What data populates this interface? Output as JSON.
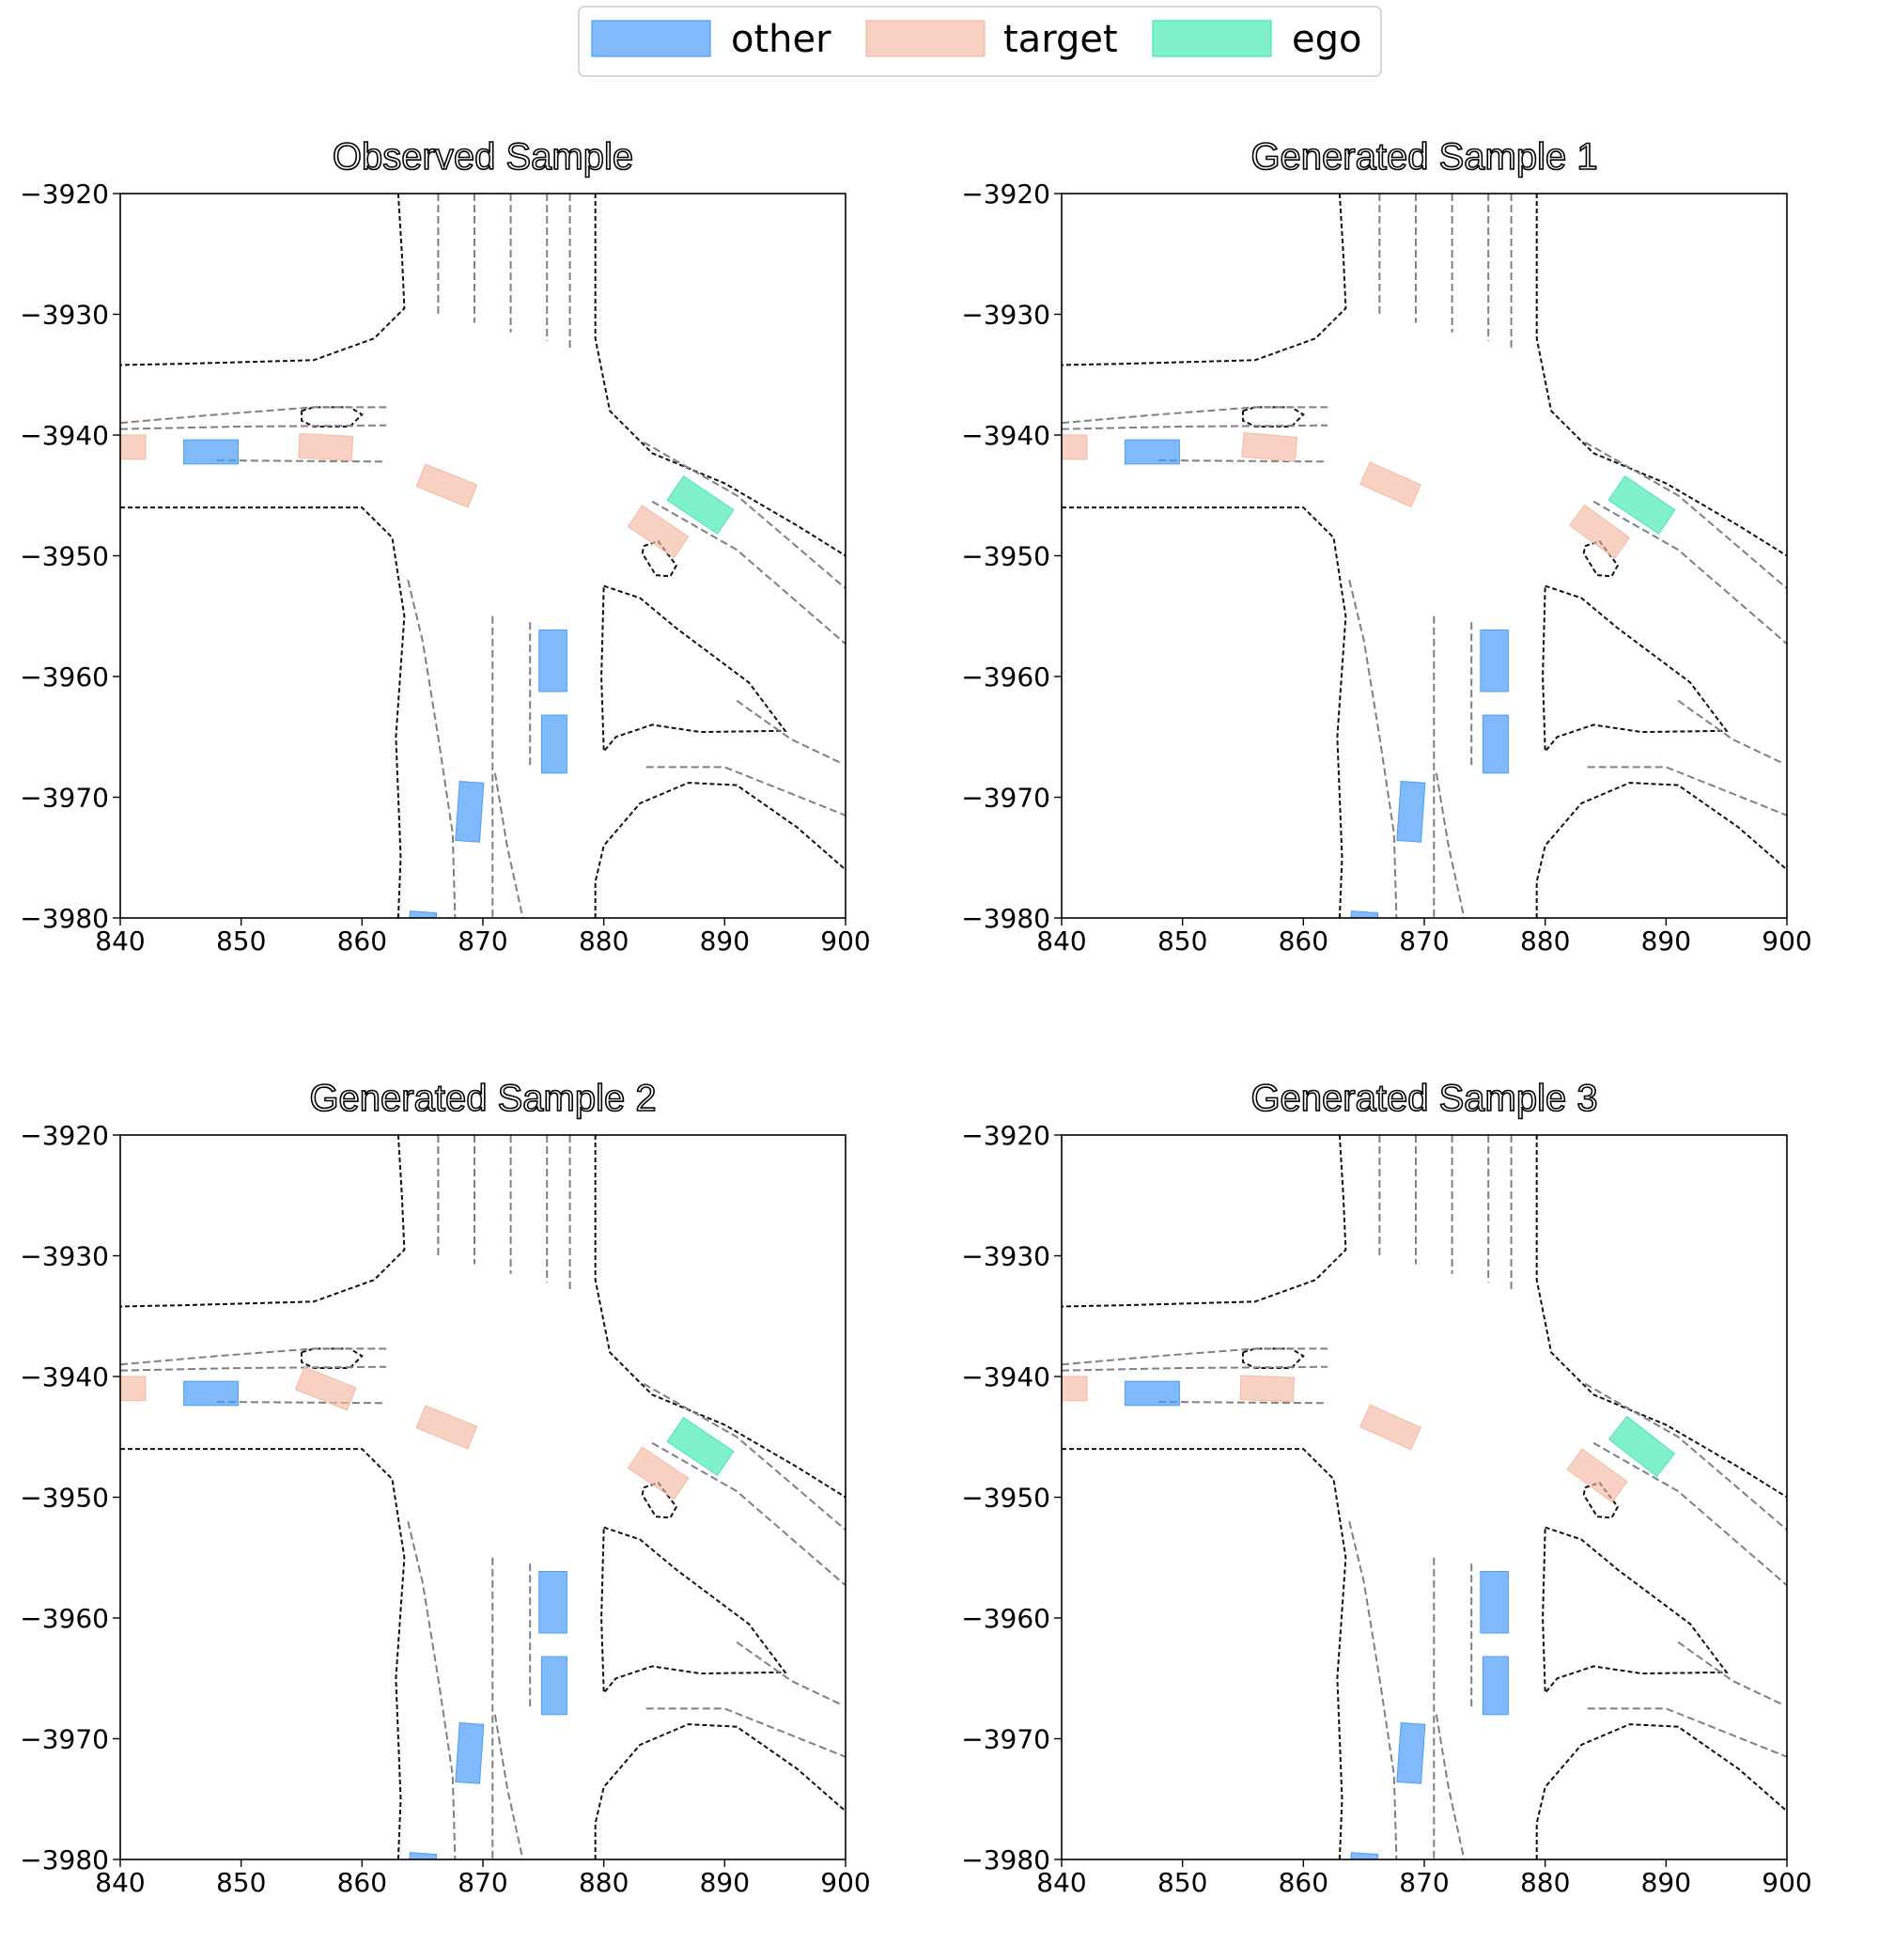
{
  "legend": {
    "placement": "top-center",
    "entries": [
      {
        "label": "other",
        "color": "#4a9df8",
        "alpha": 0.7
      },
      {
        "label": "target",
        "color": "#f4b9a3",
        "alpha": 0.65
      },
      {
        "label": "ego",
        "color": "#3ee8b0",
        "alpha": 0.65
      }
    ]
  },
  "chart_data": [
    {
      "type": "scatter",
      "title": "Observed Sample",
      "xlim": [
        840,
        900
      ],
      "ylim": [
        -3980,
        -3920
      ],
      "xticks": [
        "840",
        "850",
        "860",
        "870",
        "880",
        "890",
        "900"
      ],
      "yticks": [
        "−3920",
        "−3930",
        "−3940",
        "−3950",
        "−3960",
        "−3970",
        "−3980"
      ],
      "grid": false,
      "series": [
        {
          "name": "other",
          "boxes": [
            {
              "x": 847.5,
              "y": -3941.4,
              "w": 4.5,
              "h": 2.0,
              "angle": 0
            },
            {
              "x": 875.8,
              "y": -3958.7,
              "w": 2.3,
              "h": 5.1,
              "angle": 0
            },
            {
              "x": 875.9,
              "y": -3965.6,
              "w": 2.1,
              "h": 4.8,
              "angle": 0
            },
            {
              "x": 868.9,
              "y": -3971.2,
              "w": 2.0,
              "h": 4.9,
              "angle": 4
            },
            {
              "x": 865.0,
              "y": -3980.5,
              "w": 2.2,
              "h": 2.0,
              "angle": 4
            }
          ]
        },
        {
          "name": "target",
          "boxes": [
            {
              "x": 841.0,
              "y": -3941.0,
              "w": 2.2,
              "h": 2.0,
              "angle": 0
            },
            {
              "x": 857.0,
              "y": -3941.0,
              "w": 4.4,
              "h": 2.0,
              "angle": 3
            },
            {
              "x": 867.0,
              "y": -3944.2,
              "w": 4.6,
              "h": 2.0,
              "angle": 22
            },
            {
              "x": 884.5,
              "y": -3948.0,
              "w": 4.6,
              "h": 2.1,
              "angle": 34
            }
          ]
        },
        {
          "name": "ego",
          "boxes": [
            {
              "x": 888.0,
              "y": -3945.8,
              "w": 5.0,
              "h": 2.4,
              "angle": 34
            }
          ]
        }
      ]
    },
    {
      "type": "scatter",
      "title": "Generated Sample 1",
      "xlim": [
        840,
        900
      ],
      "ylim": [
        -3980,
        -3920
      ],
      "xticks": [
        "840",
        "850",
        "860",
        "870",
        "880",
        "890",
        "900"
      ],
      "yticks": [
        "−3920",
        "−3930",
        "−3940",
        "−3950",
        "−3960",
        "−3970",
        "−3980"
      ],
      "grid": false,
      "series": [
        {
          "name": "other",
          "boxes": [
            {
              "x": 847.5,
              "y": -3941.4,
              "w": 4.5,
              "h": 2.0,
              "angle": 0
            },
            {
              "x": 875.8,
              "y": -3958.7,
              "w": 2.3,
              "h": 5.1,
              "angle": 0
            },
            {
              "x": 875.9,
              "y": -3965.6,
              "w": 2.1,
              "h": 4.8,
              "angle": 0
            },
            {
              "x": 868.9,
              "y": -3971.2,
              "w": 2.0,
              "h": 4.9,
              "angle": 4
            },
            {
              "x": 865.0,
              "y": -3980.5,
              "w": 2.2,
              "h": 2.0,
              "angle": 4
            }
          ]
        },
        {
          "name": "target",
          "boxes": [
            {
              "x": 841.0,
              "y": -3941.0,
              "w": 2.2,
              "h": 2.0,
              "angle": 0
            },
            {
              "x": 857.2,
              "y": -3941.0,
              "w": 4.4,
              "h": 2.0,
              "angle": 5
            },
            {
              "x": 867.2,
              "y": -3944.1,
              "w": 4.6,
              "h": 2.0,
              "angle": 24
            },
            {
              "x": 884.5,
              "y": -3948.0,
              "w": 4.6,
              "h": 2.1,
              "angle": 36
            }
          ]
        },
        {
          "name": "ego",
          "boxes": [
            {
              "x": 888.0,
              "y": -3945.8,
              "w": 5.0,
              "h": 2.4,
              "angle": 34
            }
          ]
        }
      ]
    },
    {
      "type": "scatter",
      "title": "Generated Sample 2",
      "xlim": [
        840,
        900
      ],
      "ylim": [
        -3980,
        -3920
      ],
      "xticks": [
        "840",
        "850",
        "860",
        "870",
        "880",
        "890",
        "900"
      ],
      "yticks": [
        "−3920",
        "−3930",
        "−3940",
        "−3950",
        "−3960",
        "−3970",
        "−3980"
      ],
      "grid": false,
      "series": [
        {
          "name": "other",
          "boxes": [
            {
              "x": 847.5,
              "y": -3941.4,
              "w": 4.5,
              "h": 2.0,
              "angle": 0
            },
            {
              "x": 875.8,
              "y": -3958.7,
              "w": 2.3,
              "h": 5.1,
              "angle": 0
            },
            {
              "x": 875.9,
              "y": -3965.6,
              "w": 2.1,
              "h": 4.8,
              "angle": 0
            },
            {
              "x": 868.9,
              "y": -3971.2,
              "w": 2.0,
              "h": 4.9,
              "angle": 4
            },
            {
              "x": 865.0,
              "y": -3980.5,
              "w": 2.2,
              "h": 2.0,
              "angle": 4
            }
          ]
        },
        {
          "name": "target",
          "boxes": [
            {
              "x": 841.0,
              "y": -3941.0,
              "w": 2.2,
              "h": 2.0,
              "angle": 0
            },
            {
              "x": 857.0,
              "y": -3941.0,
              "w": 4.6,
              "h": 2.0,
              "angle": 22
            },
            {
              "x": 867.0,
              "y": -3944.2,
              "w": 4.6,
              "h": 2.0,
              "angle": 22
            },
            {
              "x": 884.5,
              "y": -3948.0,
              "w": 4.6,
              "h": 2.1,
              "angle": 34
            }
          ]
        },
        {
          "name": "ego",
          "boxes": [
            {
              "x": 888.0,
              "y": -3945.8,
              "w": 5.0,
              "h": 2.4,
              "angle": 34
            }
          ]
        }
      ]
    },
    {
      "type": "scatter",
      "title": "Generated Sample 3",
      "xlim": [
        840,
        900
      ],
      "ylim": [
        -3980,
        -3920
      ],
      "xticks": [
        "840",
        "850",
        "860",
        "870",
        "880",
        "890",
        "900"
      ],
      "yticks": [
        "−3920",
        "−3930",
        "−3940",
        "−3950",
        "−3960",
        "−3970",
        "−3980"
      ],
      "grid": false,
      "series": [
        {
          "name": "other",
          "boxes": [
            {
              "x": 847.5,
              "y": -3941.4,
              "w": 4.5,
              "h": 2.0,
              "angle": 0
            },
            {
              "x": 875.8,
              "y": -3958.7,
              "w": 2.3,
              "h": 5.1,
              "angle": 0
            },
            {
              "x": 875.9,
              "y": -3965.6,
              "w": 2.1,
              "h": 4.8,
              "angle": 0
            },
            {
              "x": 868.9,
              "y": -3971.2,
              "w": 2.0,
              "h": 4.9,
              "angle": 4
            },
            {
              "x": 865.0,
              "y": -3980.5,
              "w": 2.2,
              "h": 2.0,
              "angle": 4
            }
          ]
        },
        {
          "name": "target",
          "boxes": [
            {
              "x": 841.0,
              "y": -3941.0,
              "w": 2.2,
              "h": 2.0,
              "angle": 0
            },
            {
              "x": 857.0,
              "y": -3941.0,
              "w": 4.4,
              "h": 2.0,
              "angle": 2
            },
            {
              "x": 867.2,
              "y": -3944.2,
              "w": 4.6,
              "h": 2.0,
              "angle": 24
            },
            {
              "x": 884.3,
              "y": -3948.2,
              "w": 4.6,
              "h": 2.1,
              "angle": 36
            }
          ]
        },
        {
          "name": "ego",
          "boxes": [
            {
              "x": 888.0,
              "y": -3945.8,
              "w": 5.0,
              "h": 2.4,
              "angle": 38
            }
          ]
        }
      ]
    }
  ],
  "map_lines": [
    {
      "style": "solid",
      "points": [
        [
          863,
          -3920
        ],
        [
          863.3,
          -3925
        ],
        [
          863.5,
          -3929.5
        ],
        [
          861,
          -3932
        ],
        [
          856,
          -3933.8
        ],
        [
          845,
          -3934.1
        ],
        [
          840,
          -3934.2
        ]
      ]
    },
    {
      "style": "solid",
      "points": [
        [
          840,
          -3946
        ],
        [
          848,
          -3946
        ],
        [
          860,
          -3946
        ],
        [
          862.5,
          -3948.5
        ],
        [
          863.5,
          -3955
        ],
        [
          862.8,
          -3965
        ],
        [
          863.2,
          -3975
        ],
        [
          863,
          -3980
        ]
      ]
    },
    {
      "style": "solid",
      "points": [
        [
          879.3,
          -3920
        ],
        [
          879.3,
          -3932
        ],
        [
          880.5,
          -3938
        ],
        [
          884,
          -3941.5
        ],
        [
          890,
          -3944
        ],
        [
          896,
          -3947.5
        ],
        [
          900,
          -3950
        ]
      ]
    },
    {
      "style": "solid",
      "points": [
        [
          880,
          -3952.5
        ],
        [
          883,
          -3953.5
        ],
        [
          886,
          -3956
        ],
        [
          892,
          -3960.5
        ],
        [
          895,
          -3964.5
        ],
        [
          888,
          -3964.6
        ],
        [
          884,
          -3964
        ],
        [
          881,
          -3965
        ],
        [
          880,
          -3966.2
        ],
        [
          879.8,
          -3960
        ],
        [
          880,
          -3952.5
        ]
      ]
    },
    {
      "style": "solid",
      "points": [
        [
          879.3,
          -3980
        ],
        [
          879.3,
          -3977
        ],
        [
          880,
          -3974
        ],
        [
          883,
          -3970.5
        ],
        [
          887,
          -3968.8
        ],
        [
          891,
          -3969
        ],
        [
          896,
          -3972.5
        ],
        [
          900,
          -3976
        ]
      ]
    },
    {
      "style": "solid",
      "points": [
        [
          855,
          -3938
        ],
        [
          856,
          -3937.7
        ],
        [
          859,
          -3937.7
        ],
        [
          860,
          -3938.3
        ],
        [
          859,
          -3939.3
        ],
        [
          856,
          -3939.3
        ],
        [
          855,
          -3938.8
        ],
        [
          855,
          -3938
        ]
      ]
    },
    {
      "style": "solid",
      "points": [
        [
          883.3,
          -3949.2
        ],
        [
          884.5,
          -3948.8
        ],
        [
          886,
          -3950.8
        ],
        [
          885.5,
          -3951.7
        ],
        [
          884.3,
          -3951.6
        ],
        [
          883.2,
          -3949.8
        ],
        [
          883.3,
          -3949.2
        ]
      ]
    },
    {
      "style": "dashed",
      "points": [
        [
          840,
          -3939
        ],
        [
          848,
          -3938.3
        ],
        [
          856,
          -3937.7
        ],
        [
          862,
          -3937.7
        ]
      ]
    },
    {
      "style": "dashed",
      "points": [
        [
          840,
          -3939.5
        ],
        [
          850,
          -3939.3
        ],
        [
          862,
          -3939.2
        ]
      ]
    },
    {
      "style": "dashed",
      "points": [
        [
          848,
          -3942.1
        ],
        [
          862,
          -3942.2
        ]
      ]
    },
    {
      "style": "dashed",
      "points": [
        [
          866.3,
          -3920
        ],
        [
          866.3,
          -3930
        ]
      ]
    },
    {
      "style": "dashed",
      "points": [
        [
          869.3,
          -3920
        ],
        [
          869.3,
          -3930.7
        ]
      ]
    },
    {
      "style": "dashed",
      "points": [
        [
          872.3,
          -3920
        ],
        [
          872.3,
          -3931.5
        ]
      ]
    },
    {
      "style": "dashed",
      "points": [
        [
          875.3,
          -3920
        ],
        [
          875.3,
          -3932.2
        ]
      ]
    },
    {
      "style": "dashed",
      "points": [
        [
          877.2,
          -3920
        ],
        [
          877.2,
          -3933
        ]
      ]
    },
    {
      "style": "dashed",
      "points": [
        [
          884,
          -3945.5
        ],
        [
          891,
          -3949.5
        ],
        [
          900,
          -3957.3
        ]
      ]
    },
    {
      "style": "dashed",
      "points": [
        [
          883.3,
          -3940.6
        ],
        [
          891,
          -3945
        ],
        [
          900,
          -3952.7
        ]
      ]
    },
    {
      "style": "dashed",
      "points": [
        [
          883.5,
          -3967.5
        ],
        [
          890,
          -3967.5
        ],
        [
          895,
          -3969.5
        ],
        [
          900,
          -3971.5
        ]
      ]
    },
    {
      "style": "dashed",
      "points": [
        [
          891,
          -3962
        ],
        [
          895.5,
          -3965.2
        ],
        [
          899.7,
          -3967.2
        ]
      ]
    },
    {
      "style": "dashed",
      "points": [
        [
          863.8,
          -3952
        ],
        [
          865,
          -3957
        ],
        [
          866.3,
          -3965
        ],
        [
          867.5,
          -3973
        ],
        [
          867.7,
          -3980
        ]
      ]
    },
    {
      "style": "dashed",
      "points": [
        [
          870.8,
          -3955
        ],
        [
          870.8,
          -3965
        ],
        [
          870.8,
          -3980
        ]
      ]
    },
    {
      "style": "dashed",
      "points": [
        [
          873.9,
          -3955.5
        ],
        [
          873.9,
          -3967.5
        ]
      ]
    },
    {
      "style": "dashed",
      "points": [
        [
          871,
          -3968
        ],
        [
          872,
          -3974
        ],
        [
          873.3,
          -3980
        ]
      ]
    }
  ]
}
